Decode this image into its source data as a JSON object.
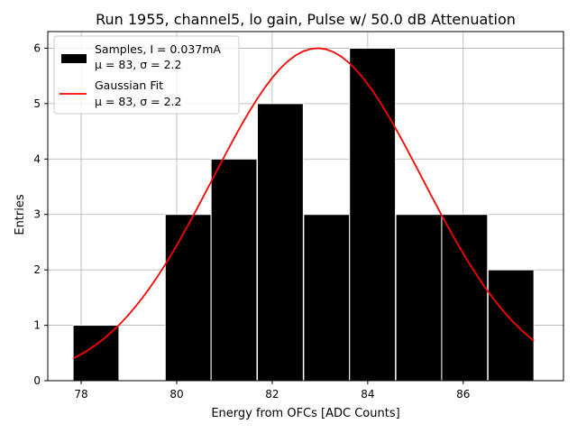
{
  "chart_data": {
    "type": "bar",
    "title": "Run 1955, channel5, lo gain, Pulse w/ 50.0 dB Attenuation",
    "xlabel": "Energy from OFCs [ADC Counts]",
    "ylabel": "Entries",
    "xlim": [
      77.3,
      88.1
    ],
    "ylim": [
      0,
      6.3
    ],
    "xticks": [
      78,
      80,
      82,
      84,
      86
    ],
    "yticks": [
      0,
      1,
      2,
      3,
      4,
      5,
      6
    ],
    "grid": true,
    "bin_width": 0.96,
    "bins": [
      {
        "x0": 77.83,
        "count": 1
      },
      {
        "x0": 78.79,
        "count": 0
      },
      {
        "x0": 79.76,
        "count": 3
      },
      {
        "x0": 80.72,
        "count": 4
      },
      {
        "x0": 81.69,
        "count": 5
      },
      {
        "x0": 82.66,
        "count": 3
      },
      {
        "x0": 83.62,
        "count": 6
      },
      {
        "x0": 84.59,
        "count": 3
      },
      {
        "x0": 85.55,
        "count": 3
      },
      {
        "x0": 86.52,
        "count": 2
      }
    ],
    "series": [
      {
        "name": "Samples, I = 0.037mA",
        "stats": "μ = 83, σ = 2.2",
        "kind": "histogram",
        "color": "#000000"
      },
      {
        "name": "Gaussian Fit",
        "stats": "μ = 83, σ = 2.2",
        "kind": "line",
        "color": "#ff0000",
        "amplitude": 6.0,
        "mu": 82.95,
        "sigma": 2.2,
        "x_range": [
          77.83,
          87.48
        ]
      }
    ],
    "legend_position": "upper-left"
  }
}
